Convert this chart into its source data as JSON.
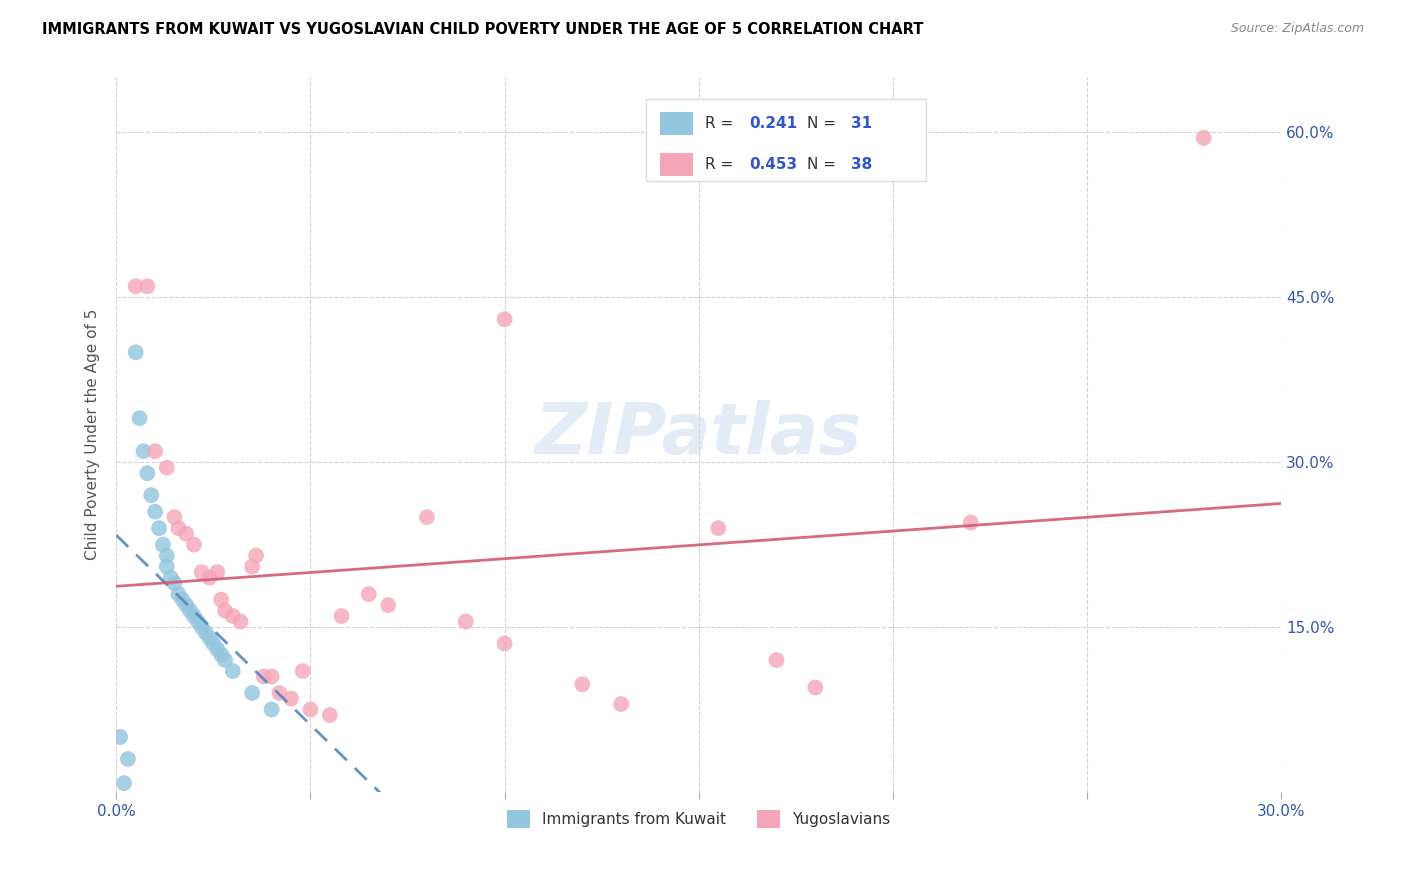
{
  "title": "IMMIGRANTS FROM KUWAIT VS YUGOSLAVIAN CHILD POVERTY UNDER THE AGE OF 5 CORRELATION CHART",
  "source": "Source: ZipAtlas.com",
  "ylabel": "Child Poverty Under the Age of 5",
  "ytick_labels": [
    "15.0%",
    "30.0%",
    "45.0%",
    "60.0%"
  ],
  "ytick_values": [
    0.15,
    0.3,
    0.45,
    0.6
  ],
  "xlim": [
    0.0,
    0.3
  ],
  "ylim": [
    0.0,
    0.65
  ],
  "legend1_r": "0.241",
  "legend1_n": "31",
  "legend2_r": "0.453",
  "legend2_n": "38",
  "blue_color": "#92c5de",
  "pink_color": "#f4a6b8",
  "trend_blue_color": "#5588bb",
  "trend_pink_color": "#d45a72",
  "watermark": "ZIPatlas",
  "blue_points_x": [
    0.001,
    0.003,
    0.005,
    0.006,
    0.007,
    0.008,
    0.009,
    0.01,
    0.011,
    0.012,
    0.013,
    0.013,
    0.014,
    0.015,
    0.016,
    0.017,
    0.018,
    0.019,
    0.02,
    0.021,
    0.022,
    0.023,
    0.024,
    0.025,
    0.026,
    0.027,
    0.028,
    0.03,
    0.035,
    0.04,
    0.002
  ],
  "blue_points_y": [
    0.05,
    0.03,
    0.4,
    0.34,
    0.31,
    0.29,
    0.27,
    0.255,
    0.24,
    0.225,
    0.215,
    0.205,
    0.195,
    0.19,
    0.18,
    0.175,
    0.17,
    0.165,
    0.16,
    0.155,
    0.15,
    0.145,
    0.14,
    0.135,
    0.13,
    0.125,
    0.12,
    0.11,
    0.09,
    0.075,
    0.008
  ],
  "pink_points_x": [
    0.005,
    0.008,
    0.01,
    0.013,
    0.015,
    0.016,
    0.018,
    0.02,
    0.022,
    0.024,
    0.026,
    0.027,
    0.028,
    0.03,
    0.032,
    0.035,
    0.036,
    0.038,
    0.04,
    0.042,
    0.045,
    0.048,
    0.05,
    0.055,
    0.058,
    0.065,
    0.07,
    0.08,
    0.09,
    0.1,
    0.12,
    0.13,
    0.155,
    0.17,
    0.18,
    0.22,
    0.1,
    0.28
  ],
  "pink_points_y": [
    0.46,
    0.46,
    0.31,
    0.295,
    0.25,
    0.24,
    0.235,
    0.225,
    0.2,
    0.195,
    0.2,
    0.175,
    0.165,
    0.16,
    0.155,
    0.205,
    0.215,
    0.105,
    0.105,
    0.09,
    0.085,
    0.11,
    0.075,
    0.07,
    0.16,
    0.18,
    0.17,
    0.25,
    0.155,
    0.135,
    0.098,
    0.08,
    0.24,
    0.12,
    0.095,
    0.245,
    0.43,
    0.595
  ]
}
